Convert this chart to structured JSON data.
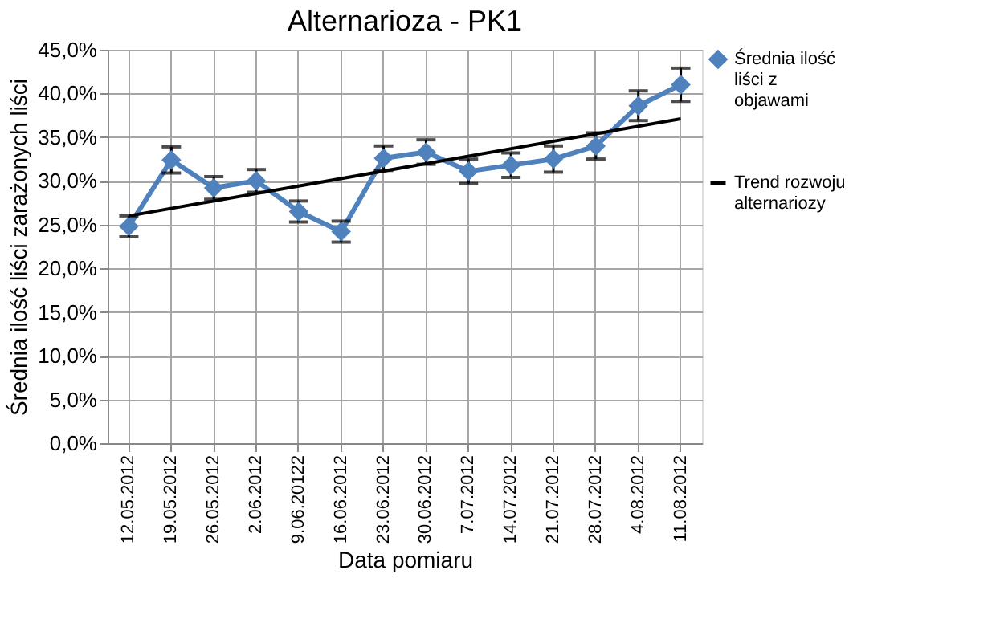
{
  "chart_data": {
    "type": "line",
    "title": "Alternarioza - PK1",
    "xlabel": "Data pomiaru",
    "ylabel": "Średnia ilość liści zarażonych liści",
    "categories": [
      "12.05.2012",
      "19.05.2012",
      "26.05.2012",
      "2.06.2012",
      "9.06.20122",
      "16.06.2012",
      "23.06.2012",
      "30.06.2012",
      "7.07.2012",
      "14.07.2012",
      "21.07.2012",
      "28.07.2012",
      "4.08.2012",
      "11.08.2012"
    ],
    "series": [
      {
        "name": "Średnia ilość liści z objawami",
        "color": "#4f81bd",
        "marker": "diamond",
        "values": [
          24.8,
          32.4,
          29.2,
          30.0,
          26.5,
          24.2,
          32.6,
          33.3,
          31.1,
          31.8,
          32.5,
          34.0,
          38.6,
          41.0
        ],
        "errors": [
          1.2,
          1.5,
          1.3,
          1.3,
          1.2,
          1.2,
          1.4,
          1.4,
          1.4,
          1.4,
          1.5,
          1.5,
          1.7,
          1.9
        ]
      },
      {
        "name": "Trend rozwoju alternariozy",
        "color": "#000000",
        "marker": "none",
        "x": [
          "12.05.2012",
          "11.08.2012"
        ],
        "values": [
          26.0,
          37.1
        ]
      }
    ],
    "ylim": [
      0,
      45
    ],
    "yticks": [
      {
        "value": 0,
        "label": "0,0%"
      },
      {
        "value": 5,
        "label": "5,0%"
      },
      {
        "value": 10,
        "label": "10,0%"
      },
      {
        "value": 15,
        "label": "15,0%"
      },
      {
        "value": 20,
        "label": "20,0%"
      },
      {
        "value": 25,
        "label": "25,0%"
      },
      {
        "value": 30,
        "label": "30,0%"
      },
      {
        "value": 35,
        "label": "35,0%"
      },
      {
        "value": 40,
        "label": "40,0%"
      },
      {
        "value": 45,
        "label": "45,0%"
      }
    ],
    "grid": true,
    "legend": "right"
  }
}
